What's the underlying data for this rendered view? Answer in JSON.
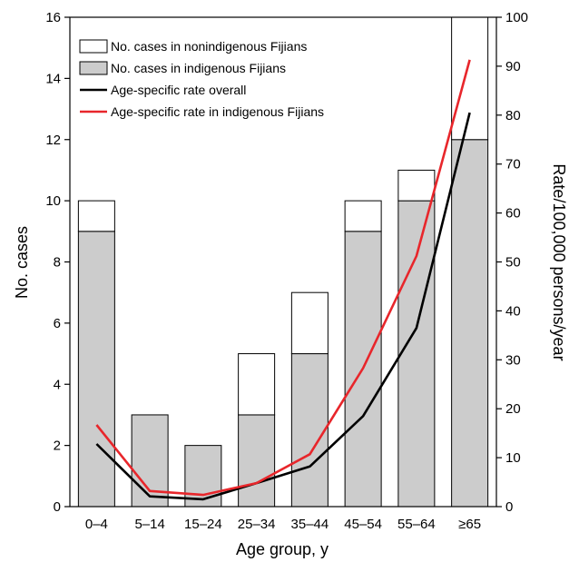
{
  "chart_data": {
    "type": "bar",
    "categories": [
      "0–4",
      "5–14",
      "15–24",
      "25–34",
      "35–44",
      "45–54",
      "55–64",
      "≥65"
    ],
    "series": [
      {
        "name": "No. cases in indigenous Fijians",
        "kind": "bar-stack-bottom",
        "axis": "left",
        "color": "#cccccc",
        "values": [
          9,
          3,
          2,
          3,
          5,
          9,
          10,
          12
        ]
      },
      {
        "name": "No. cases in nonindigenous Fijians",
        "kind": "bar-stack-top",
        "axis": "left",
        "color": "#ffffff",
        "values": [
          1,
          0,
          0,
          2,
          2,
          1,
          1,
          4
        ]
      },
      {
        "name": "Age-specific rate overall",
        "kind": "line",
        "axis": "right",
        "color": "#000000",
        "values": [
          12.8,
          2.1,
          1.5,
          4.8,
          8.2,
          18.5,
          36.5,
          80.5
        ]
      },
      {
        "name": "Age-specific rate in indigenous Fijians",
        "kind": "line",
        "axis": "right",
        "color": "#e8262b",
        "values": [
          16.7,
          3.2,
          2.4,
          4.8,
          10.7,
          28.3,
          51.2,
          91.3
        ]
      }
    ],
    "legend_order": [
      "No. cases in nonindigenous Fijians",
      "No. cases in indigenous Fijians",
      "Age-specific rate overall",
      "Age-specific rate in indigenous Fijians"
    ],
    "legend_placement": "top-left",
    "xlabel": "Age group, y",
    "ylabel": "No. cases",
    "ylabel_right": "Rate/100,000 persons/year",
    "ylim": [
      0,
      16
    ],
    "ylim_right": [
      0,
      100
    ],
    "yticks": [
      "0",
      "2",
      "4",
      "6",
      "8",
      "10",
      "12",
      "14",
      "16"
    ],
    "yticks_right": [
      "0",
      "10",
      "20",
      "30",
      "40",
      "50",
      "60",
      "70",
      "80",
      "90",
      "100"
    ],
    "grid": false
  }
}
